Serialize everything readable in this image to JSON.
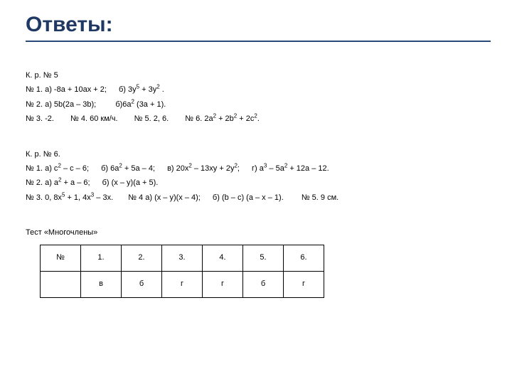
{
  "title": "Ответы:",
  "kr5": {
    "heading": "К. р. № 5",
    "line1a": "№ 1. а) -8a + 10ax + 2;",
    "line1b": "б) 3y",
    "line1b_exp1": "5",
    "line1b_mid": " + 3y",
    "line1b_exp2": "2",
    "line1b_end": " .",
    "line2a": "№ 2. а) 5b(2a – 3b);",
    "line2b_pre": "б)6a",
    "line2b_exp": "2",
    "line2b_post": " (3a + 1).",
    "line3a": "№ 3. -2.",
    "line3b": "№ 4. 60 км/ч.",
    "line3c": "№ 5. 2, 6.",
    "line3d_pre": "№ 6. 2a",
    "line3d_e1": "2",
    "line3d_m1": " + 2b",
    "line3d_e2": "2",
    "line3d_m2": " + 2c",
    "line3d_e3": "2",
    "line3d_end": "."
  },
  "kr6": {
    "heading": "К. р. № 6.",
    "l1a_pre": "№ 1. а) c",
    "l1a_e1": "2",
    "l1a_post": " – c – 6;",
    "l1b_pre": "б) 6a",
    "l1b_e1": "2",
    "l1b_post": " + 5a – 4;",
    "l1c_pre": "в) 20x",
    "l1c_e1": "2",
    "l1c_mid": " – 13xy + 2y",
    "l1c_e2": "2",
    "l1c_post": ";",
    "l1d_pre": "г) a",
    "l1d_e1": "3",
    "l1d_mid": " – 5a",
    "l1d_e2": "2",
    "l1d_post": " + 12a – 12.",
    "l2a_pre": "№ 2. а) a",
    "l2a_e1": "2",
    "l2a_post": " + a – 6;",
    "l2b": "б) (x – y)(a + 5).",
    "l3a_pre": "№ 3. 0, 8x",
    "l3a_e1": "5",
    "l3a_mid": " + 1, 4x",
    "l3a_e2": "3",
    "l3a_post": " – 3x.",
    "l3b": "№ 4 а) (x – y)(x – 4);",
    "l3c": "б) (b – c) (a – x – 1).",
    "l3d": "№ 5. 9 см."
  },
  "test": {
    "heading": "Тест «Многочлены»",
    "header": [
      "№",
      "1.",
      "2.",
      "3.",
      "4.",
      "5.",
      "6."
    ],
    "row": [
      "",
      "в",
      "б",
      "г",
      "г",
      "б",
      "г"
    ]
  }
}
